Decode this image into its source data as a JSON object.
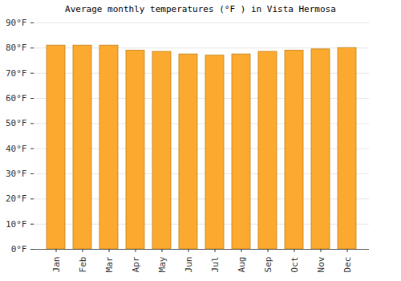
{
  "chart_data": {
    "type": "bar",
    "title": "Average monthly temperatures (°F ) in Vista Hermosa",
    "categories": [
      "Jan",
      "Feb",
      "Mar",
      "Apr",
      "May",
      "Jun",
      "Jul",
      "Aug",
      "Sep",
      "Oct",
      "Nov",
      "Dec"
    ],
    "values": [
      81,
      81,
      81,
      79,
      78.5,
      77.5,
      77,
      77.5,
      78.5,
      79,
      79.5,
      80
    ],
    "color": "#fbaa2f",
    "ylim": [
      0,
      90
    ],
    "yticks": [
      {
        "value": 0,
        "label": "0°F"
      },
      {
        "value": 10,
        "label": "10°F"
      },
      {
        "value": 20,
        "label": "20°F"
      },
      {
        "value": 30,
        "label": "30°F"
      },
      {
        "value": 40,
        "label": "40°F"
      },
      {
        "value": 50,
        "label": "50°F"
      },
      {
        "value": 60,
        "label": "60°F"
      },
      {
        "value": 70,
        "label": "70°F"
      },
      {
        "value": 80,
        "label": "80°F"
      },
      {
        "value": 90,
        "label": "90°F"
      }
    ],
    "grid": true
  }
}
